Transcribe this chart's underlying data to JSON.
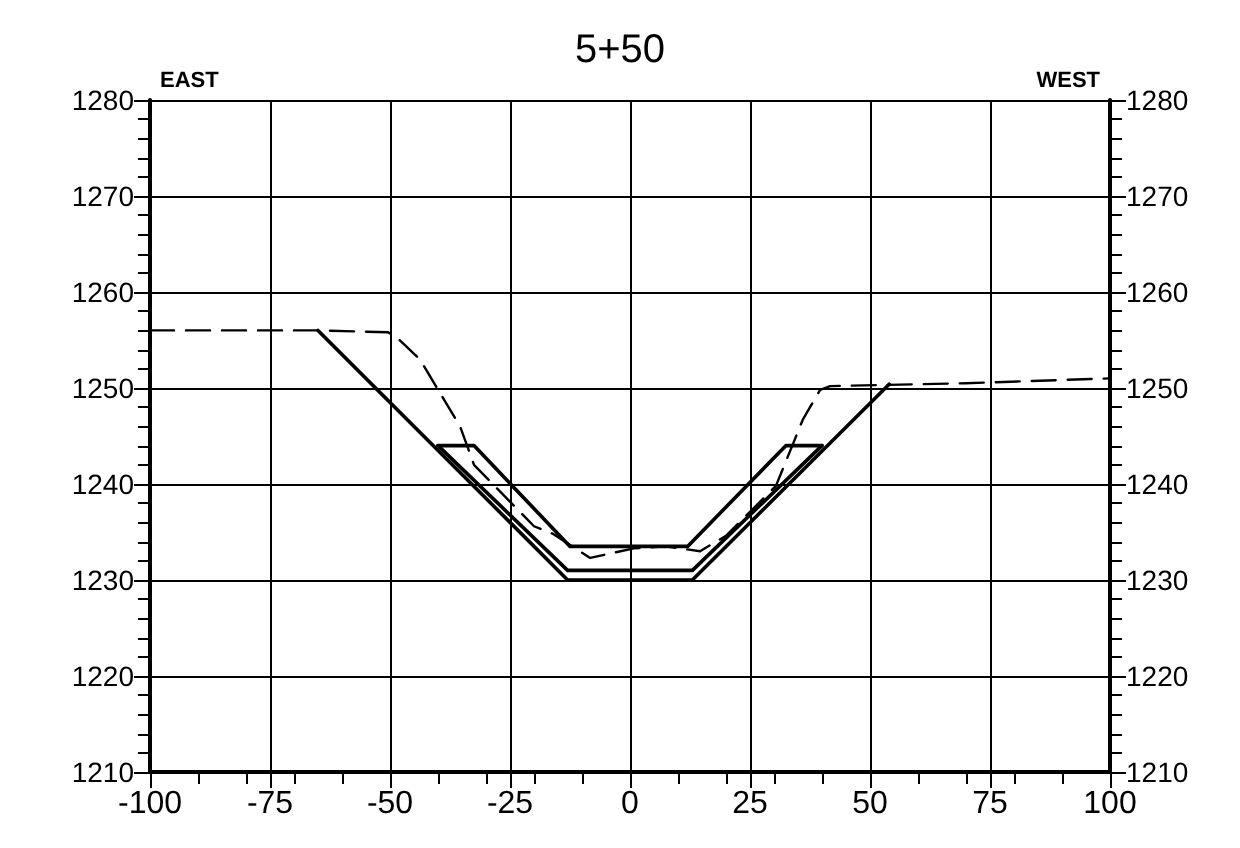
{
  "chart_data": {
    "type": "line",
    "title": "5+50",
    "annotations": [
      "EAST",
      "WEST"
    ],
    "series": [
      {
        "color": "#000000",
        "line_style": "solid",
        "x": [
          -65,
          -13,
          13,
          54
        ],
        "values": [
          1256,
          1230,
          1230,
          1250.4
        ]
      },
      {
        "color": "#000000",
        "line_style": "solid",
        "x": [
          -40,
          -13,
          13,
          40
        ],
        "values": [
          1244,
          1231,
          1231,
          1244
        ]
      },
      {
        "color": "#000000",
        "line_style": "solid",
        "x": [
          -40,
          -32.5,
          -12.5,
          12,
          32.5,
          40
        ],
        "values": [
          1244,
          1244,
          1233.5,
          1233.5,
          1244,
          1244
        ]
      },
      {
        "color": "#000000",
        "line_style": "dashed",
        "x": [
          -100,
          -65,
          -50.4,
          -48,
          -43.8,
          -35.4,
          -32.5,
          -20,
          -16,
          -8.3,
          0.8,
          7.5,
          14.6,
          20,
          30.4,
          36,
          39.6,
          41.7,
          70,
          100
        ],
        "values": [
          1256,
          1256,
          1255.8,
          1255,
          1253,
          1246,
          1242,
          1235.6,
          1234.8,
          1232.3,
          1233.3,
          1233.5,
          1233,
          1234.6,
          1239.8,
          1246.7,
          1249.8,
          1250.2,
          1250.5,
          1251
        ]
      }
    ],
    "xlim": [
      -100,
      100
    ],
    "xticks": [
      -100,
      -75,
      -50,
      -25,
      0,
      25,
      50,
      75,
      100
    ],
    "ylim": [
      1210,
      1280
    ],
    "yticks": [
      1210,
      1220,
      1230,
      1240,
      1250,
      1260,
      1270,
      1280
    ],
    "y2lim": [
      1210,
      1280
    ],
    "y2ticks": [
      1210,
      1220,
      1230,
      1240,
      1250,
      1260,
      1270,
      1280
    ],
    "grid": true,
    "marker": "none"
  }
}
